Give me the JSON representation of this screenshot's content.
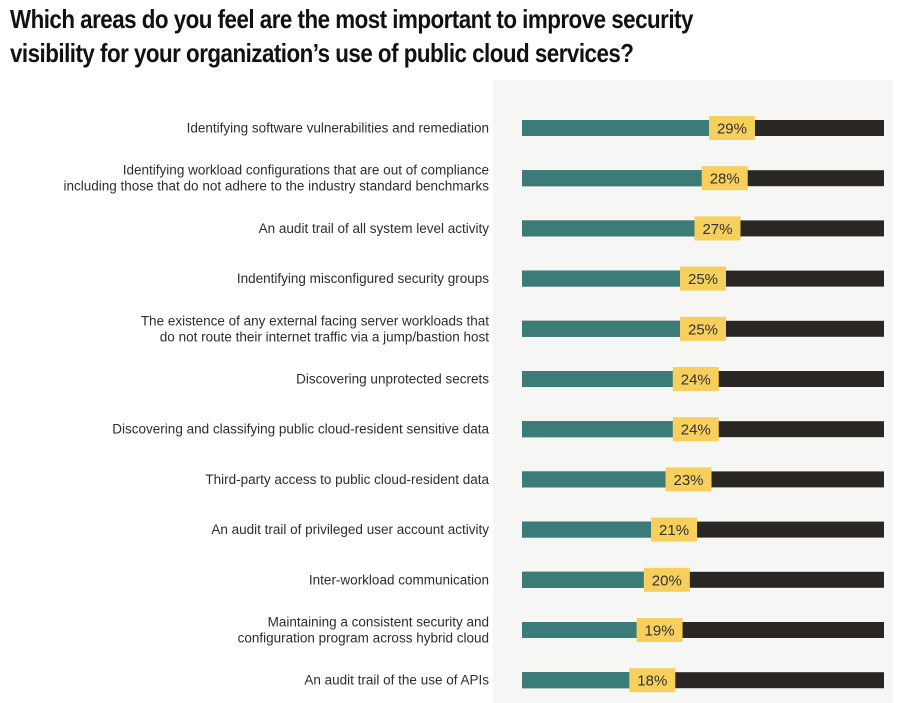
{
  "title": {
    "line1": "Which areas do you feel are the most important to improve security",
    "line2": "visibility for your organization’s use of public cloud services?"
  },
  "colors": {
    "bar_fill": "#3b7c79",
    "bar_remainder": "#2a2623",
    "label_box": "#f6cf5d",
    "panel_bg": "#f6f6f4"
  },
  "chart_data": {
    "type": "bar",
    "orientation": "horizontal",
    "categories": [
      [
        "Identifying software vulnerabilities and remediation"
      ],
      [
        "Identifying workload configurations that are out of compliance",
        "including those that do not adhere to the industry standard benchmarks"
      ],
      [
        "An audit trail of all system level activity"
      ],
      [
        "Indentifying misconfigured security groups"
      ],
      [
        "The existence of any external facing server workloads that",
        "do not route their internet traffic via a jump/bastion host"
      ],
      [
        "Discovering unprotected secrets"
      ],
      [
        "Discovering and classifying public cloud-resident sensitive data"
      ],
      [
        "Third-party access to public cloud-resident data"
      ],
      [
        "An audit trail of privileged user account activity"
      ],
      [
        "Inter-workload communication"
      ],
      [
        "Maintaining a consistent security and",
        "configuration program across hybrid cloud"
      ],
      [
        "An audit trail of the use of APIs"
      ]
    ],
    "values": [
      29,
      28,
      27,
      25,
      25,
      24,
      24,
      23,
      21,
      20,
      19,
      18
    ],
    "value_labels": [
      "29%",
      "28%",
      "27%",
      "25%",
      "25%",
      "24%",
      "24%",
      "23%",
      "21%",
      "20%",
      "19%",
      "18%"
    ],
    "xlim": [
      0,
      50
    ],
    "grid": false,
    "legend": "none"
  }
}
